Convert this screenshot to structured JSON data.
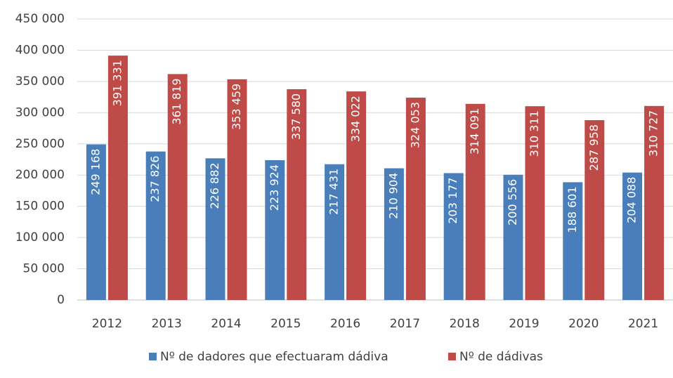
{
  "chart_data": {
    "type": "bar",
    "categories": [
      "2012",
      "2013",
      "2014",
      "2015",
      "2016",
      "2017",
      "2018",
      "2019",
      "2020",
      "2021"
    ],
    "series": [
      {
        "name": "Nº de dadores que efectuaram dádiva",
        "color": "#4a7ebb",
        "values": [
          249168,
          237826,
          226882,
          223924,
          217431,
          210904,
          203177,
          200556,
          188601,
          204088
        ],
        "value_labels": [
          "249 168",
          "237 826",
          "226 882",
          "223 924",
          "217 431",
          "210 904",
          "203 177",
          "200 556",
          "188 601",
          "204 088"
        ]
      },
      {
        "name": "Nº de dádivas",
        "color": "#be4b48",
        "values": [
          391331,
          361819,
          353459,
          337580,
          334022,
          324053,
          314091,
          310311,
          287958,
          310727
        ],
        "value_labels": [
          "391 331",
          "361 819",
          "353 459",
          "337 580",
          "334 022",
          "324 053",
          "314 091",
          "310 311",
          "287 958",
          "310 727"
        ]
      }
    ],
    "ylim": [
      0,
      450000
    ],
    "yticks": [
      0,
      {
        "value": 50000,
        "label": "50 000"
      },
      {
        "value": 100000,
        "label": "100 000"
      },
      {
        "value": 150000,
        "label": "150 000"
      },
      {
        "value": 200000,
        "label": "200 000"
      },
      {
        "value": 250000,
        "label": "250 000"
      },
      {
        "value": 300000,
        "label": "300 000"
      },
      {
        "value": 350000,
        "label": "350 000"
      },
      {
        "value": 400000,
        "label": "400 000"
      },
      {
        "value": 450000,
        "label": "450 000"
      }
    ],
    "grid": true,
    "legend": "bottom"
  }
}
